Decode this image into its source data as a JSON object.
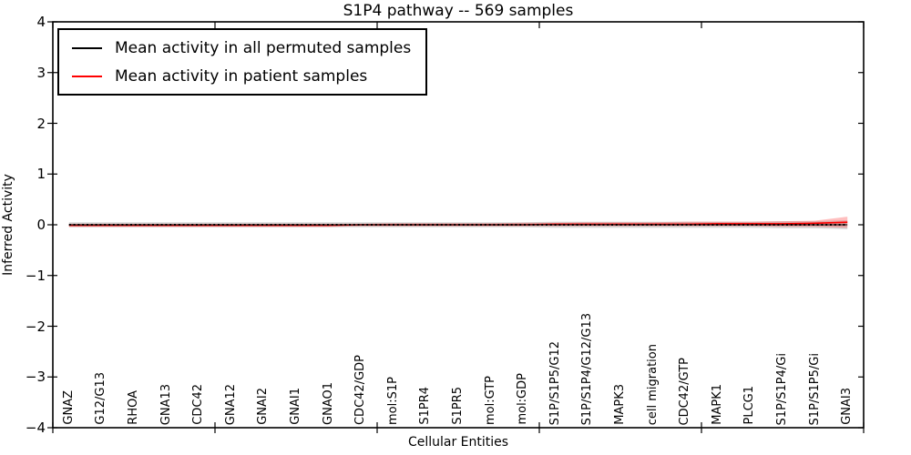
{
  "title": "S1P4 pathway -- 569 samples",
  "axes": {
    "xlabel": "Cellular Entities",
    "ylabel": "Inferred Activity",
    "ytick_labels": [
      "4",
      "3",
      "2",
      "1",
      "0",
      "−1",
      "−2",
      "−3",
      "−4"
    ]
  },
  "legend": {
    "entries": [
      {
        "label": "Mean activity in all permuted samples",
        "color": "#000000"
      },
      {
        "label": "Mean activity in patient samples",
        "color": "#ff0000"
      }
    ]
  },
  "chart_data": {
    "type": "line",
    "title": "S1P4 pathway -- 569 samples",
    "xlabel": "Cellular Entities",
    "ylabel": "Inferred Activity",
    "ylim": [
      -4,
      4
    ],
    "yticks": [
      4,
      3,
      2,
      1,
      0,
      -1,
      -2,
      -3,
      -4
    ],
    "x_major_tick_positions": [
      0,
      5,
      10,
      15,
      20,
      25
    ],
    "grid": false,
    "legend_position": "upper left",
    "categories": [
      "GNAZ",
      "G12/G13",
      "RHOA",
      "GNA13",
      "CDC42",
      "GNA12",
      "GNAI2",
      "GNAI1",
      "GNAO1",
      "CDC42/GDP",
      "mol:S1P",
      "S1PR4",
      "S1PR5",
      "mol:GTP",
      "mol:GDP",
      "S1P/S1P5/G12",
      "S1P/S1P4/G12/G13",
      "MAPK3",
      "cell migration",
      "CDC42/GTP",
      "MAPK1",
      "PLCG1",
      "S1P/S1P4/Gi",
      "S1P/S1P5/Gi",
      "GNAI3"
    ],
    "series": [
      {
        "id": "permuted",
        "name": "Mean activity in all permuted samples",
        "color": "#000000",
        "line_style": "dotted",
        "values": [
          0,
          0,
          0,
          0,
          0,
          0,
          0,
          0,
          0,
          0,
          0,
          0,
          0,
          0,
          0,
          0,
          0,
          0,
          0,
          0,
          0,
          0,
          0,
          0,
          0
        ],
        "band_upper": [
          0.05,
          0.05,
          0.05,
          0.05,
          0.05,
          0.05,
          0.05,
          0.05,
          0.05,
          0.05,
          0.05,
          0.05,
          0.05,
          0.05,
          0.05,
          0.06,
          0.06,
          0.06,
          0.06,
          0.06,
          0.06,
          0.06,
          0.07,
          0.07,
          0.09
        ],
        "band_lower": [
          -0.05,
          -0.05,
          -0.05,
          -0.05,
          -0.05,
          -0.05,
          -0.05,
          -0.05,
          -0.05,
          -0.05,
          -0.05,
          -0.05,
          -0.05,
          -0.05,
          -0.05,
          -0.06,
          -0.06,
          -0.06,
          -0.06,
          -0.06,
          -0.06,
          -0.06,
          -0.07,
          -0.07,
          -0.09
        ],
        "band_color": "#aaaaaa",
        "band_opacity": 0.45
      },
      {
        "id": "patient",
        "name": "Mean activity in patient samples",
        "color": "#ff0000",
        "line_style": "solid",
        "values": [
          -0.01,
          -0.01,
          -0.01,
          -0.01,
          -0.01,
          -0.01,
          -0.01,
          -0.01,
          -0.01,
          0,
          0,
          0,
          0,
          0,
          0,
          0.01,
          0.01,
          0.01,
          0.01,
          0.01,
          0.02,
          0.02,
          0.02,
          0.03,
          0.05
        ],
        "band_upper": [
          0.02,
          0.02,
          0.02,
          0.02,
          0.02,
          0.02,
          0.02,
          0.02,
          0.02,
          0.02,
          0.03,
          0.03,
          0.03,
          0.03,
          0.04,
          0.04,
          0.05,
          0.05,
          0.05,
          0.06,
          0.06,
          0.06,
          0.07,
          0.08,
          0.16
        ],
        "band_lower": [
          -0.04,
          -0.04,
          -0.04,
          -0.04,
          -0.04,
          -0.04,
          -0.04,
          -0.04,
          -0.04,
          -0.03,
          -0.03,
          -0.03,
          -0.03,
          -0.03,
          -0.03,
          -0.03,
          -0.03,
          -0.03,
          -0.03,
          -0.03,
          -0.03,
          -0.03,
          -0.04,
          -0.04,
          -0.06
        ],
        "band_color": "#ff0000",
        "band_opacity": 0.25
      }
    ]
  }
}
